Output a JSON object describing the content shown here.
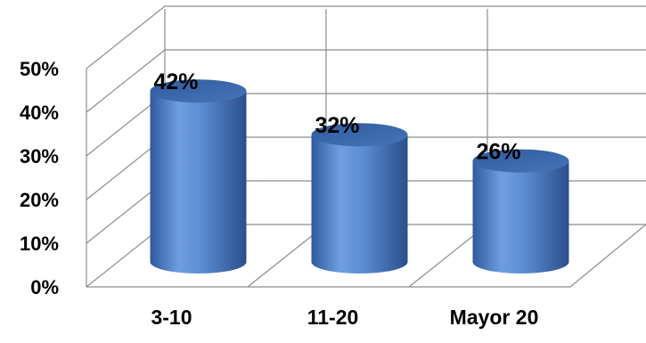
{
  "chart_data": {
    "type": "bar",
    "style": "3d-cylinder",
    "categories": [
      "3-10",
      "11-20",
      "Mayor 20"
    ],
    "values": [
      42,
      32,
      26
    ],
    "data_labels": [
      "42%",
      "32%",
      "26%"
    ],
    "y_ticks": [
      "0%",
      "10%",
      "20%",
      "30%",
      "40%",
      "50%"
    ],
    "ylim": [
      0,
      50
    ],
    "grid": true,
    "legend": "none",
    "colors": {
      "bar_light": "#6f9fe0",
      "bar_mid": "#4a7cc4",
      "bar_dark": "#2a4f8c",
      "bar_top": "#3b6aae",
      "grid": "#8c8c8c"
    }
  }
}
